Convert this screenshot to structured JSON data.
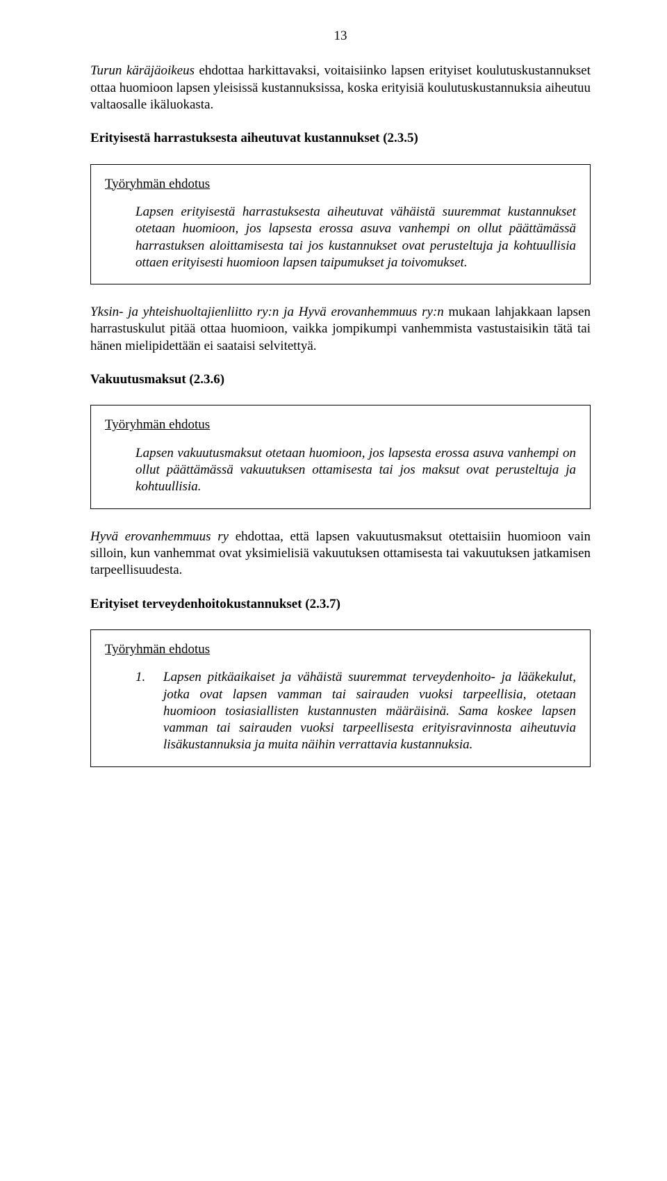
{
  "pageNumber": "13",
  "intro": {
    "lead": "Turun käräjäoikeus",
    "rest": " ehdottaa harkittavaksi, voitaisiinko lapsen erityiset koulutus­kustannukset ottaa huomioon lapsen yleisissä kustannuksissa, koska erityisiä kou­lutuskustannuksia aiheutuu valtaosalle ikäluokasta."
  },
  "section1": {
    "heading": "Erityisestä harrastuksesta aiheutuvat kustannukset (2.3.5)",
    "boxTitle": "Työryhmän ehdotus",
    "boxBody": "Lapsen erityisestä harrastuksesta aiheutuvat vähäistä suuremmat kus­tannukset otetaan huomioon, jos lapsesta erossa asuva vanhempi on ol­lut päättämässä harrastuksen aloittamisesta tai jos kustannukset ovat perusteltuja ja kohtuullisia ottaen erityisesti huomioon lapsen taipumuk­set ja toivomukset.",
    "after": {
      "lead": "Yksin- ja yhteishuoltajienliitto ry:n ja Hyvä erovanhemmuus ry:n",
      "rest": " mukaan lahjak­kaan lapsen harrastuskulut pitää ottaa huomioon, vaikka jompikumpi vanhemmista vastustaisikin tätä tai hänen mielipidettään ei saataisi selvitettyä."
    }
  },
  "section2": {
    "heading": "Vakuutusmaksut (2.3.6)",
    "boxTitle": "Työryhmän ehdotus",
    "boxBody": "Lapsen vakuutusmaksut otetaan huomioon, jos lapsesta erossa asuva vanhempi on ollut päättämässä vakuutuksen ottamisesta tai jos maksut ovat perusteltuja ja kohtuullisia.",
    "after": {
      "lead": "Hyvä erovanhemmuus ry",
      "rest": " ehdottaa, että lapsen vakuutusmaksut otettaisiin huomi­oon vain silloin, kun vanhemmat ovat yksimielisiä vakuutuksen ottamisesta tai vakuutuksen jatkamisen tarpeellisuudesta."
    }
  },
  "section3": {
    "heading": "Erityiset terveydenhoitokustannukset (2.3.7)",
    "boxTitle": "Työryhmän ehdotus",
    "list": {
      "num": "1.",
      "text": "Lapsen pitkäaikaiset ja vähäistä suuremmat terveydenhoito- ja lääkekulut, jotka ovat lapsen vamman tai sairauden vuok­si tarpeellisia, otetaan huomioon tosiasiallisten kustannusten määräisinä. Sama koskee lapsen vamman tai sairauden vuoksi tarpeellisesta erityisravinnosta aiheutuvia lisäkustan­nuksia ja muita näihin verrattavia kustannuksia."
    }
  }
}
